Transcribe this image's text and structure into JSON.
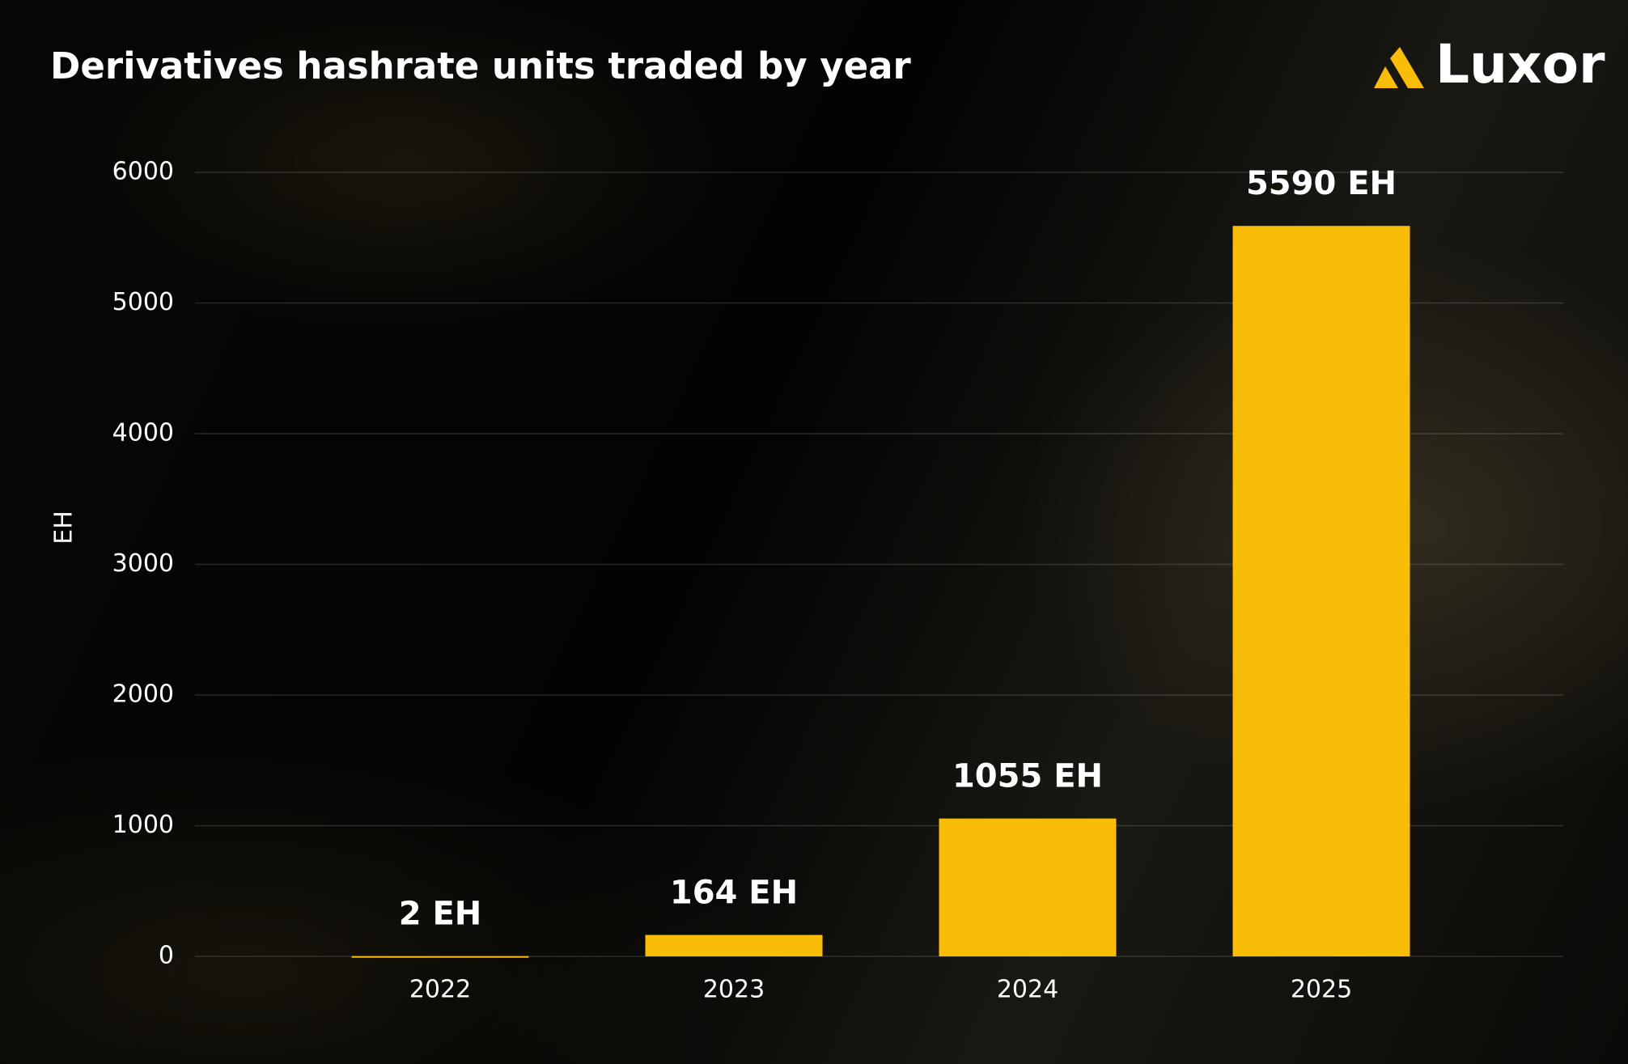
{
  "logo": "Luxor",
  "chart_data": {
    "type": "bar",
    "title": "Derivatives hashrate units traded by year",
    "ylabel": "EH",
    "categories": [
      "2022",
      "2023",
      "2024",
      "2025"
    ],
    "values": [
      2,
      164,
      1055,
      5590
    ],
    "value_labels": [
      "2 EH",
      "164 EH",
      "1055 EH",
      "5590 EH"
    ],
    "color": "#f9bd08",
    "ylim": [
      0,
      6000
    ],
    "yticks": [
      0,
      1000,
      2000,
      3000,
      4000,
      5000,
      6000
    ],
    "grid": true
  }
}
